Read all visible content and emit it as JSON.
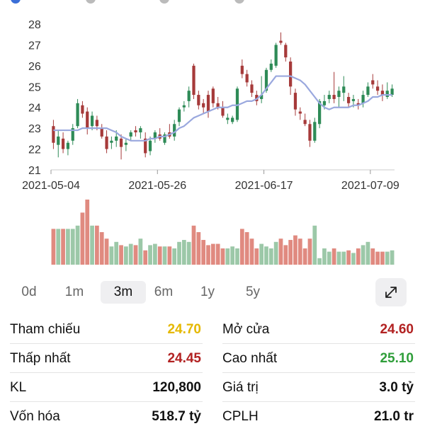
{
  "colors": {
    "up": "#2e8b57",
    "down": "#a63a3a",
    "vol_up": "#9cc8a8",
    "vol_down": "#e08a80",
    "ma": "#9aa8de",
    "ref": "#e5b800",
    "neg": "#b22222",
    "pos": "#2f9e3a"
  },
  "chart_data": {
    "type": "candlestick",
    "y_ticks": [
      "21",
      "22",
      "23",
      "24",
      "25",
      "26",
      "27",
      "28"
    ],
    "ylim": [
      21,
      28
    ],
    "x_ticks": [
      "2021-05-04",
      "2021-05-26",
      "2021-06-17",
      "2021-07-09"
    ],
    "ohlc": [
      [
        23.1,
        23.4,
        22.0,
        22.3
      ],
      [
        22.2,
        22.9,
        21.6,
        22.6
      ],
      [
        22.5,
        22.8,
        21.8,
        22.0
      ],
      [
        22.0,
        22.4,
        21.7,
        22.3
      ],
      [
        22.4,
        23.2,
        22.2,
        23.0
      ],
      [
        23.1,
        24.4,
        23.0,
        24.2
      ],
      [
        24.1,
        24.3,
        23.5,
        23.7
      ],
      [
        23.8,
        24.0,
        22.7,
        23.0
      ],
      [
        23.1,
        23.8,
        22.9,
        23.6
      ],
      [
        23.4,
        23.6,
        22.9,
        23.1
      ],
      [
        23.0,
        23.2,
        22.5,
        22.6
      ],
      [
        22.6,
        22.9,
        21.8,
        22.0
      ],
      [
        22.3,
        22.6,
        22.0,
        22.4
      ],
      [
        22.4,
        22.9,
        22.1,
        22.6
      ],
      [
        22.5,
        22.7,
        21.5,
        22.1
      ],
      [
        22.2,
        22.5,
        21.9,
        22.3
      ],
      [
        22.6,
        22.9,
        22.4,
        22.8
      ],
      [
        22.9,
        23.1,
        22.6,
        22.8
      ],
      [
        22.8,
        23.1,
        22.5,
        23.0
      ],
      [
        22.5,
        22.8,
        21.6,
        21.8
      ],
      [
        21.9,
        22.6,
        21.7,
        22.4
      ],
      [
        22.5,
        22.9,
        22.3,
        22.8
      ],
      [
        22.7,
        23.0,
        22.4,
        22.5
      ],
      [
        22.3,
        22.8,
        22.2,
        22.7
      ],
      [
        22.8,
        23.2,
        22.5,
        22.6
      ],
      [
        22.6,
        23.4,
        22.4,
        23.2
      ],
      [
        23.3,
        24.0,
        23.1,
        23.9
      ],
      [
        24.0,
        24.3,
        23.8,
        24.1
      ],
      [
        24.3,
        25.0,
        24.0,
        24.8
      ],
      [
        26.0,
        26.1,
        24.4,
        24.6
      ],
      [
        24.6,
        24.8,
        23.9,
        24.1
      ],
      [
        24.2,
        24.4,
        23.7,
        24.0
      ],
      [
        24.6,
        24.8,
        23.5,
        23.8
      ],
      [
        24.9,
        25.0,
        24.0,
        24.2
      ],
      [
        24.2,
        24.5,
        23.9,
        24.0
      ],
      [
        24.0,
        24.3,
        23.5,
        23.6
      ],
      [
        23.4,
        23.7,
        23.2,
        23.5
      ],
      [
        23.3,
        23.6,
        23.2,
        23.5
      ],
      [
        23.4,
        25.0,
        23.3,
        24.9
      ],
      [
        26.0,
        26.3,
        25.4,
        25.6
      ],
      [
        25.6,
        25.8,
        25.0,
        25.2
      ],
      [
        25.1,
        25.3,
        24.5,
        24.7
      ],
      [
        24.6,
        24.8,
        24.1,
        24.3
      ],
      [
        24.4,
        25.5,
        24.2,
        24.6
      ],
      [
        24.8,
        25.9,
        24.7,
        25.8
      ],
      [
        25.8,
        26.3,
        25.7,
        26.1
      ],
      [
        26.0,
        27.1,
        25.9,
        27.0
      ],
      [
        27.2,
        27.6,
        27.0,
        27.1
      ],
      [
        27.0,
        27.1,
        26.2,
        26.4
      ],
      [
        26.2,
        26.4,
        24.6,
        25.0
      ],
      [
        24.7,
        24.9,
        23.6,
        23.9
      ],
      [
        23.8,
        24.0,
        23.4,
        23.7
      ],
      [
        23.4,
        23.7,
        23.1,
        23.2
      ],
      [
        23.2,
        23.4,
        22.1,
        22.4
      ],
      [
        22.4,
        23.5,
        22.3,
        23.3
      ],
      [
        23.2,
        24.4,
        23.0,
        24.3
      ],
      [
        24.1,
        24.6,
        23.9,
        24.3
      ],
      [
        24.4,
        24.8,
        24.2,
        24.6
      ],
      [
        24.6,
        25.7,
        24.2,
        24.4
      ],
      [
        24.5,
        25.0,
        24.0,
        24.8
      ],
      [
        24.7,
        25.5,
        24.3,
        25.0
      ],
      [
        24.5,
        24.7,
        24.0,
        24.2
      ],
      [
        24.3,
        24.6,
        24.0,
        24.4
      ],
      [
        24.2,
        24.4,
        23.9,
        24.1
      ],
      [
        24.2,
        24.8,
        24.0,
        24.6
      ],
      [
        24.6,
        25.2,
        24.5,
        25.0
      ],
      [
        25.3,
        25.6,
        24.9,
        25.1
      ],
      [
        25.0,
        25.3,
        24.6,
        24.8
      ],
      [
        24.8,
        25.1,
        24.3,
        24.6
      ],
      [
        24.5,
        25.2,
        24.4,
        24.8
      ],
      [
        24.6,
        25.1,
        24.5,
        24.9
      ]
    ],
    "ma": [
      22.9,
      22.9,
      22.9,
      22.9,
      22.9,
      22.9,
      23.0,
      23.0,
      23.0,
      23.0,
      23.0,
      23.0,
      22.9,
      22.8,
      22.6,
      22.5,
      22.4,
      22.4,
      22.4,
      22.4,
      22.5,
      22.5,
      22.6,
      22.6,
      22.7,
      22.8,
      23.0,
      23.1,
      23.3,
      23.5,
      23.6,
      23.7,
      23.8,
      23.9,
      24.0,
      24.0,
      24.0,
      24.1,
      24.1,
      24.2,
      24.3,
      24.3,
      24.4,
      24.6,
      24.9,
      25.2,
      25.5,
      25.5,
      25.5,
      25.5,
      25.4,
      25.3,
      25.1,
      24.8,
      24.5,
      24.2,
      24.0,
      23.9,
      24.0,
      24.0,
      24.0,
      24.0,
      24.1,
      24.1,
      24.2,
      24.3,
      24.5,
      24.5,
      24.6,
      24.6,
      24.6
    ],
    "volume": [
      55,
      55,
      55,
      55,
      55,
      60,
      80,
      100,
      60,
      60,
      50,
      40,
      28,
      35,
      30,
      28,
      32,
      30,
      40,
      22,
      30,
      32,
      28,
      28,
      28,
      25,
      35,
      38,
      35,
      60,
      50,
      38,
      30,
      32,
      32,
      25,
      25,
      28,
      25,
      55,
      50,
      40,
      25,
      32,
      28,
      25,
      35,
      40,
      30,
      38,
      45,
      40,
      25,
      40,
      60,
      10,
      25,
      20,
      25,
      20,
      20,
      22,
      18,
      25,
      30,
      35,
      25,
      20,
      20,
      20,
      22
    ]
  },
  "tabs": [
    "0d",
    "1m",
    "3m",
    "6m",
    "1y",
    "5y"
  ],
  "active_tab": "3m",
  "stats": {
    "ref_label": "Tham chiếu",
    "ref_value": "24.70",
    "open_label": "Mở cửa",
    "open_value": "24.60",
    "low_label": "Thấp nhất",
    "low_value": "24.45",
    "high_label": "Cao nhất",
    "high_value": "25.10",
    "vol_label": "KL",
    "vol_value": "120,800",
    "trade_label": "Giá trị",
    "trade_value": "3.0 tỷ",
    "cap_label": "Vốn hóa",
    "cap_value": "518.7 tỷ",
    "shares_label": "CPLH",
    "shares_value": "21.0 tr"
  }
}
